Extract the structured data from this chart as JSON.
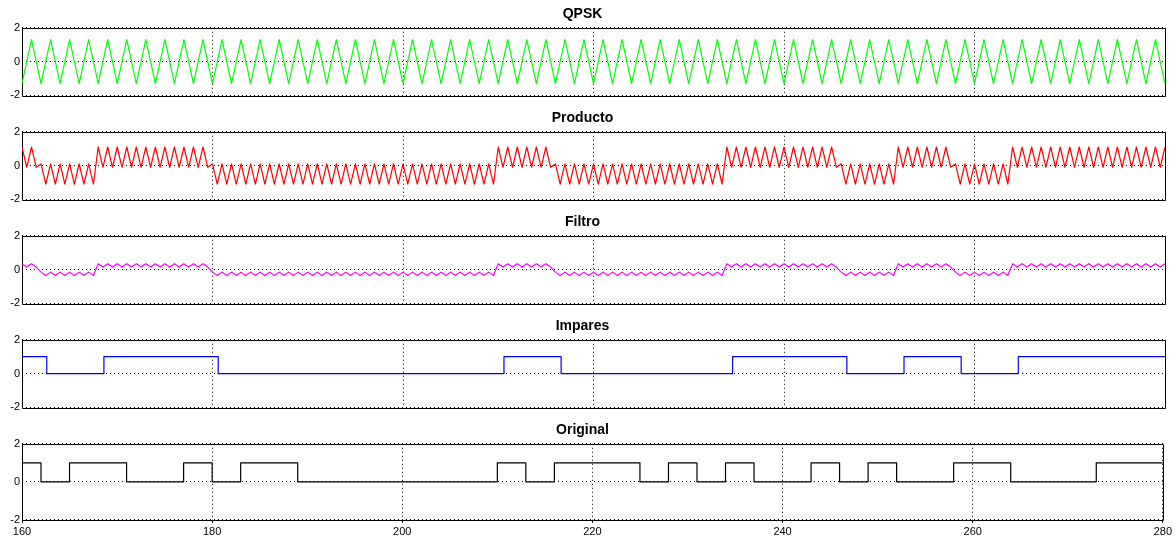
{
  "chart_data": [
    {
      "type": "line",
      "title": "QPSK",
      "xlim": [
        160,
        280
      ],
      "xticks": [
        160,
        180,
        200,
        220,
        240,
        260,
        280
      ],
      "ylim": [
        -2,
        2
      ],
      "yticks": [
        -2,
        0,
        2
      ],
      "grid": true,
      "tick_labels": "y",
      "series": [
        {
          "color": "#00ff00",
          "x": [
            160,
            160.5,
            161,
            161.5,
            162,
            162.5,
            163,
            163.5,
            164,
            164.5,
            165,
            165.5,
            166,
            166.5,
            167,
            167.5,
            168,
            168.5,
            169,
            169.5,
            170,
            170.5,
            171,
            171.5,
            172,
            172.5,
            173,
            173.5,
            174,
            174.5,
            175,
            175.5,
            176,
            176.5,
            177,
            177.5,
            178,
            178.5,
            179,
            179.5,
            180,
            180.5,
            181,
            181.5,
            182,
            182.5,
            183,
            183.5,
            184,
            184.5,
            185,
            185.5,
            186,
            186.5,
            187,
            187.5,
            188,
            188.5,
            189,
            189.5,
            190,
            190.5,
            191,
            191.5,
            192,
            192.5,
            193,
            193.5,
            194,
            194.5,
            195,
            195.5,
            196,
            196.5,
            197,
            197.5,
            198,
            198.5,
            199,
            199.5,
            200,
            200.5,
            201,
            201.5,
            202,
            202.5,
            203,
            203.5,
            204,
            204.5,
            205,
            205.5,
            206,
            206.5,
            207,
            207.5,
            208,
            208.5,
            209,
            209.5,
            210,
            210.5,
            211,
            211.5,
            212,
            212.5,
            213,
            213.5,
            214,
            214.5,
            215,
            215.5,
            216,
            216.5,
            217,
            217.5,
            218,
            218.5,
            219,
            219.5,
            220,
            220.5,
            221,
            221.5,
            222,
            222.5,
            223,
            223.5,
            224,
            224.5,
            225,
            225.5,
            226,
            226.5,
            227,
            227.5,
            228,
            228.5,
            229,
            229.5,
            230,
            230.5,
            231,
            231.5,
            232,
            232.5,
            233,
            233.5,
            234,
            234.5,
            235,
            235.5,
            236,
            236.5,
            237,
            237.5,
            238,
            238.5,
            239,
            239.5,
            240,
            240.5,
            241,
            241.5,
            242,
            242.5,
            243,
            243.5,
            244,
            244.5,
            245,
            245.5,
            246,
            246.5,
            247,
            247.5,
            248,
            248.5,
            249,
            249.5,
            250,
            250.5,
            251,
            251.5,
            252,
            252.5,
            253,
            253.5,
            254,
            254.5,
            255,
            255.5,
            256,
            256.5,
            257,
            257.5,
            258,
            258.5,
            259,
            259.5,
            260,
            260.5,
            261,
            261.5,
            262,
            262.5,
            263,
            263.5,
            264,
            264.5,
            265,
            265.5,
            266,
            266.5,
            267,
            267.5,
            268,
            268.5,
            269,
            269.5,
            270,
            270.5,
            271,
            271.5,
            272,
            272.5,
            273,
            273.5,
            274,
            274.5,
            275,
            275.5,
            276,
            276.5,
            277,
            277.5,
            278,
            278.5,
            279,
            279.5,
            280
          ],
          "values": [
            -1.3,
            0,
            1.3,
            0,
            -1.3,
            0,
            1.3,
            0,
            -1.3,
            0,
            1.3,
            0,
            -1.3,
            0,
            1.3,
            0,
            -1.3,
            0,
            1.3,
            0,
            -1.3,
            0,
            1.3,
            0,
            -1.3,
            0,
            1.3,
            0,
            -1.3,
            0,
            1.3,
            0,
            -1.3,
            0,
            1.3,
            0,
            -1.3,
            0,
            1.3,
            0,
            -1.3,
            0,
            1.3,
            0,
            -1.3,
            0,
            1.3,
            0,
            -1.3,
            0,
            1.3,
            0,
            -1.3,
            0,
            1.3,
            0,
            -1.3,
            0,
            1.3,
            0,
            -1.3,
            0,
            1.3,
            0,
            -1.3,
            0,
            1.3,
            0,
            -1.3,
            0,
            1.3,
            0,
            -1.3,
            0,
            1.3,
            0,
            -1.3,
            0,
            1.3,
            0,
            -1.3,
            0,
            1.3,
            0,
            -1.3,
            0,
            1.3,
            0,
            -1.3,
            0,
            1.3,
            0,
            -1.3,
            0,
            1.3,
            0,
            -1.3,
            0,
            1.3,
            0,
            -1.3,
            0,
            1.3,
            0,
            -1.3,
            0,
            1.3,
            0,
            -1.3,
            0,
            1.3,
            0,
            -1.3,
            0,
            1.3,
            0,
            -1.3,
            0,
            1.3,
            0,
            -1.3,
            0,
            1.3,
            0,
            -1.3,
            0,
            1.3,
            0,
            -1.3,
            0,
            1.3,
            0,
            -1.3,
            0,
            1.3,
            0,
            -1.3,
            0,
            1.3,
            0,
            -1.3,
            0,
            1.3,
            0,
            -1.3,
            0,
            1.3,
            0,
            -1.3,
            0,
            1.3,
            0,
            -1.3,
            0,
            1.3,
            0,
            -1.3,
            0,
            1.3,
            0,
            -1.3,
            0,
            1.3,
            0,
            -1.3,
            0,
            1.3,
            0,
            -1.3,
            0,
            1.3,
            0,
            -1.3,
            0,
            1.3,
            0,
            -1.3,
            0,
            1.3,
            0,
            -1.3,
            0,
            1.3,
            0,
            -1.3,
            0,
            1.3,
            0,
            -1.3,
            0,
            1.3,
            0,
            -1.3,
            0,
            1.3,
            0,
            -1.3,
            0,
            1.3,
            0,
            -1.3,
            0,
            1.3,
            0,
            -1.3,
            0,
            1.3,
            0,
            -1.3,
            0,
            1.3,
            0,
            -1.3,
            0,
            1.3,
            0,
            -1.3,
            0,
            1.3,
            0,
            -1.3,
            0,
            1.3,
            0,
            -1.3,
            0,
            1.3,
            0,
            -1.3,
            0,
            1.3,
            0,
            -1.3,
            0,
            1.3,
            0,
            -1.3,
            0,
            1.3,
            0,
            -1.3
          ]
        }
      ]
    },
    {
      "type": "line",
      "title": "Producto",
      "xlim": [
        160,
        280
      ],
      "xticks": [
        160,
        180,
        200,
        220,
        240,
        260,
        280
      ],
      "ylim": [
        -2,
        2
      ],
      "yticks": [
        -2,
        0,
        2
      ],
      "grid": true,
      "tick_labels": "y",
      "series": [
        {
          "color": "#ff0000",
          "x": [
            160,
            160.5,
            161,
            161.5,
            162,
            162.5,
            163,
            163.5,
            164,
            164.5,
            165,
            165.5,
            166,
            166.5,
            167,
            167.5,
            168,
            168.5,
            169,
            169.5,
            170,
            170.5,
            171,
            171.5,
            172,
            172.5,
            173,
            173.5,
            174,
            174.5,
            175,
            175.5,
            176,
            176.5,
            177,
            177.5,
            178,
            178.5,
            179,
            179.5,
            180,
            180.5,
            181,
            181.5,
            182,
            182.5,
            183,
            183.5,
            184,
            184.5,
            185,
            185.5,
            186,
            186.5,
            187,
            187.5,
            188,
            188.5,
            189,
            189.5,
            190,
            190.5,
            191,
            191.5,
            192,
            192.5,
            193,
            193.5,
            194,
            194.5,
            195,
            195.5,
            196,
            196.5,
            197,
            197.5,
            198,
            198.5,
            199,
            199.5,
            200,
            200.5,
            201,
            201.5,
            202,
            202.5,
            203,
            203.5,
            204,
            204.5,
            205,
            205.5,
            206,
            206.5,
            207,
            207.5,
            208,
            208.5,
            209,
            209.5,
            210,
            210.5,
            211,
            211.5,
            212,
            212.5,
            213,
            213.5,
            214,
            214.5,
            215,
            215.5,
            216,
            216.5,
            217,
            217.5,
            218,
            218.5,
            219,
            219.5,
            220,
            220.5,
            221,
            221.5,
            222,
            222.5,
            223,
            223.5,
            224,
            224.5,
            225,
            225.5,
            226,
            226.5,
            227,
            227.5,
            228,
            228.5,
            229,
            229.5,
            230,
            230.5,
            231,
            231.5,
            232,
            232.5,
            233,
            233.5,
            234,
            234.5,
            235,
            235.5,
            236,
            236.5,
            237,
            237.5,
            238,
            238.5,
            239,
            239.5,
            240,
            240.5,
            241,
            241.5,
            242,
            242.5,
            243,
            243.5,
            244,
            244.5,
            245,
            245.5,
            246,
            246.5,
            247,
            247.5,
            248,
            248.5,
            249,
            249.5,
            250,
            250.5,
            251,
            251.5,
            252,
            252.5,
            253,
            253.5,
            254,
            254.5,
            255,
            255.5,
            256,
            256.5,
            257,
            257.5,
            258,
            258.5,
            259,
            259.5,
            260,
            260.5,
            261,
            261.5,
            262,
            262.5,
            263,
            263.5,
            264,
            264.5,
            265,
            265.5,
            266,
            266.5,
            267,
            267.5,
            268,
            268.5,
            269,
            269.5,
            270,
            270.5,
            271,
            271.5,
            272,
            272.5,
            273,
            273.5,
            274,
            274.5,
            275,
            275.5,
            276,
            276.5,
            277,
            277.5,
            278,
            278.5,
            279,
            279.5,
            280
          ],
          "values": [
            1.1,
            -0.1,
            1.1,
            -0.1,
            0.1,
            -1.1,
            0.1,
            -1.1,
            0.1,
            -1.1,
            0.1,
            -1.1,
            0.1,
            -1.1,
            0.1,
            -1.1,
            1.1,
            -0.1,
            1.1,
            -0.1,
            1.1,
            -0.1,
            1.1,
            -0.1,
            1.1,
            -0.1,
            1.1,
            -0.1,
            1.1,
            -0.1,
            1.1,
            -0.1,
            1.1,
            -0.1,
            1.1,
            -0.1,
            1.1,
            -0.1,
            1.1,
            -0.1,
            0.1,
            -1.1,
            0.1,
            -1.1,
            0.1,
            -1.1,
            0.1,
            -1.1,
            0.1,
            -1.1,
            0.1,
            -1.1,
            0.1,
            -1.1,
            0.1,
            -1.1,
            0.1,
            -1.1,
            0.1,
            -1.1,
            0.1,
            -1.1,
            0.1,
            -1.1,
            0.1,
            -1.1,
            0.1,
            -1.1,
            0.1,
            -1.1,
            0.1,
            -1.1,
            0.1,
            -1.1,
            0.1,
            -1.1,
            0.1,
            -1.1,
            0.1,
            -1.1,
            0.1,
            -1.1,
            0.1,
            -1.1,
            0.1,
            -1.1,
            0.1,
            -1.1,
            0.1,
            -1.1,
            0.1,
            -1.1,
            0.1,
            -1.1,
            0.1,
            -1.1,
            0.1,
            -1.1,
            0.1,
            -1.1,
            1.1,
            -0.1,
            1.1,
            -0.1,
            1.1,
            -0.1,
            1.1,
            -0.1,
            1.1,
            -0.1,
            1.1,
            -0.1,
            0.1,
            -1.1,
            0.1,
            -1.1,
            0.1,
            -1.1,
            0.1,
            -1.1,
            0.1,
            -1.1,
            0.1,
            -1.1,
            0.1,
            -1.1,
            0.1,
            -1.1,
            0.1,
            -1.1,
            0.1,
            -1.1,
            0.1,
            -1.1,
            0.1,
            -1.1,
            0.1,
            -1.1,
            0.1,
            -1.1,
            0.1,
            -1.1,
            0.1,
            -1.1,
            0.1,
            -1.1,
            0.1,
            -1.1,
            1.1,
            -0.1,
            1.1,
            -0.1,
            1.1,
            -0.1,
            1.1,
            -0.1,
            1.1,
            -0.1,
            1.1,
            -0.1,
            1.1,
            -0.1,
            1.1,
            -0.1,
            1.1,
            -0.1,
            1.1,
            -0.1,
            1.1,
            -0.1,
            1.1,
            -0.1,
            0.1,
            -1.1,
            0.1,
            -1.1,
            0.1,
            -1.1,
            0.1,
            -1.1,
            0.1,
            -1.1,
            0.1,
            -1.1,
            1.1,
            -0.1,
            1.1,
            -0.1,
            1.1,
            -0.1,
            1.1,
            -0.1,
            1.1,
            -0.1,
            1.1,
            -0.1,
            0.1,
            -1.1,
            0.1,
            -1.1,
            0.1,
            -1.1,
            0.1,
            -1.1,
            0.1,
            -1.1,
            0.1,
            -1.1,
            1.1,
            -0.1,
            1.1,
            -0.1,
            1.1,
            -0.1,
            1.1,
            -0.1,
            1.1,
            -0.1,
            1.1,
            -0.1,
            1.1,
            -0.1,
            1.1,
            -0.1,
            1.1,
            -0.1,
            1.1,
            -0.1,
            1.1,
            -0.1,
            1.1,
            -0.1,
            1.1,
            -0.1,
            1.1,
            -0.1,
            1.1,
            -0.1,
            1.1,
            -0.1,
            1.1
          ]
        }
      ]
    },
    {
      "type": "line",
      "title": "Filtro",
      "xlim": [
        160,
        280
      ],
      "xticks": [
        160,
        180,
        200,
        220,
        240,
        260,
        280
      ],
      "ylim": [
        -2,
        2
      ],
      "yticks": [
        -2,
        0,
        2
      ],
      "grid": true,
      "tick_labels": "y",
      "series": [
        {
          "color": "#ff00ff",
          "x": [
            160,
            160.5,
            161,
            161.5,
            162,
            162.5,
            163,
            163.5,
            164,
            164.5,
            165,
            165.5,
            166,
            166.5,
            167,
            167.5,
            168,
            168.5,
            169,
            169.5,
            170,
            170.5,
            171,
            171.5,
            172,
            172.5,
            173,
            173.5,
            174,
            174.5,
            175,
            175.5,
            176,
            176.5,
            177,
            177.5,
            178,
            178.5,
            179,
            179.5,
            180,
            180.5,
            181,
            181.5,
            182,
            182.5,
            183,
            183.5,
            184,
            184.5,
            185,
            185.5,
            186,
            186.5,
            187,
            187.5,
            188,
            188.5,
            189,
            189.5,
            190,
            190.5,
            191,
            191.5,
            192,
            192.5,
            193,
            193.5,
            194,
            194.5,
            195,
            195.5,
            196,
            196.5,
            197,
            197.5,
            198,
            198.5,
            199,
            199.5,
            200,
            200.5,
            201,
            201.5,
            202,
            202.5,
            203,
            203.5,
            204,
            204.5,
            205,
            205.5,
            206,
            206.5,
            207,
            207.5,
            208,
            208.5,
            209,
            209.5,
            210,
            210.5,
            211,
            211.5,
            212,
            212.5,
            213,
            213.5,
            214,
            214.5,
            215,
            215.5,
            216,
            216.5,
            217,
            217.5,
            218,
            218.5,
            219,
            219.5,
            220,
            220.5,
            221,
            221.5,
            222,
            222.5,
            223,
            223.5,
            224,
            224.5,
            225,
            225.5,
            226,
            226.5,
            227,
            227.5,
            228,
            228.5,
            229,
            229.5,
            230,
            230.5,
            231,
            231.5,
            232,
            232.5,
            233,
            233.5,
            234,
            234.5,
            235,
            235.5,
            236,
            236.5,
            237,
            237.5,
            238,
            238.5,
            239,
            239.5,
            240,
            240.5,
            241,
            241.5,
            242,
            242.5,
            243,
            243.5,
            244,
            244.5,
            245,
            245.5,
            246,
            246.5,
            247,
            247.5,
            248,
            248.5,
            249,
            249.5,
            250,
            250.5,
            251,
            251.5,
            252,
            252.5,
            253,
            253.5,
            254,
            254.5,
            255,
            255.5,
            256,
            256.5,
            257,
            257.5,
            258,
            258.5,
            259,
            259.5,
            260,
            260.5,
            261,
            261.5,
            262,
            262.5,
            263,
            263.5,
            264,
            264.5,
            265,
            265.5,
            266,
            266.5,
            267,
            267.5,
            268,
            268.5,
            269,
            269.5,
            270,
            270.5,
            271,
            271.5,
            272,
            272.5,
            273,
            273.5,
            274,
            274.5,
            275,
            275.5,
            276,
            276.5,
            277,
            277.5,
            278,
            278.5,
            279,
            279.5,
            280
          ],
          "values": [
            0.35,
            0.15,
            0.35,
            0.15,
            -0.15,
            -0.35,
            -0.15,
            -0.35,
            -0.15,
            -0.35,
            -0.15,
            -0.35,
            -0.15,
            -0.35,
            -0.15,
            -0.35,
            0.35,
            0.15,
            0.35,
            0.15,
            0.35,
            0.15,
            0.35,
            0.15,
            0.35,
            0.15,
            0.35,
            0.15,
            0.35,
            0.15,
            0.35,
            0.15,
            0.35,
            0.15,
            0.35,
            0.15,
            0.35,
            0.15,
            0.35,
            0.15,
            -0.15,
            -0.35,
            -0.15,
            -0.35,
            -0.15,
            -0.35,
            -0.15,
            -0.35,
            -0.15,
            -0.35,
            -0.15,
            -0.35,
            -0.15,
            -0.35,
            -0.15,
            -0.35,
            -0.15,
            -0.35,
            -0.15,
            -0.35,
            -0.15,
            -0.35,
            -0.15,
            -0.35,
            -0.15,
            -0.35,
            -0.15,
            -0.35,
            -0.15,
            -0.35,
            -0.15,
            -0.35,
            -0.15,
            -0.35,
            -0.15,
            -0.35,
            -0.15,
            -0.35,
            -0.15,
            -0.35,
            -0.15,
            -0.35,
            -0.15,
            -0.35,
            -0.15,
            -0.35,
            -0.15,
            -0.35,
            -0.15,
            -0.35,
            -0.15,
            -0.35,
            -0.15,
            -0.35,
            -0.15,
            -0.35,
            -0.15,
            -0.35,
            -0.15,
            -0.35,
            0.35,
            0.15,
            0.35,
            0.15,
            0.35,
            0.15,
            0.35,
            0.15,
            0.35,
            0.15,
            0.35,
            0.15,
            -0.15,
            -0.35,
            -0.15,
            -0.35,
            -0.15,
            -0.35,
            -0.15,
            -0.35,
            -0.15,
            -0.35,
            -0.15,
            -0.35,
            -0.15,
            -0.35,
            -0.15,
            -0.35,
            -0.15,
            -0.35,
            -0.15,
            -0.35,
            -0.15,
            -0.35,
            -0.15,
            -0.35,
            -0.15,
            -0.35,
            -0.15,
            -0.35,
            -0.15,
            -0.35,
            -0.15,
            -0.35,
            -0.15,
            -0.35,
            -0.15,
            -0.35,
            0.35,
            0.15,
            0.35,
            0.15,
            0.35,
            0.15,
            0.35,
            0.15,
            0.35,
            0.15,
            0.35,
            0.15,
            0.35,
            0.15,
            0.35,
            0.15,
            0.35,
            0.15,
            0.35,
            0.15,
            0.35,
            0.15,
            0.35,
            0.15,
            -0.15,
            -0.35,
            -0.15,
            -0.35,
            -0.15,
            -0.35,
            -0.15,
            -0.35,
            -0.15,
            -0.35,
            -0.15,
            -0.35,
            0.35,
            0.15,
            0.35,
            0.15,
            0.35,
            0.15,
            0.35,
            0.15,
            0.35,
            0.15,
            0.35,
            0.15,
            -0.15,
            -0.35,
            -0.15,
            -0.35,
            -0.15,
            -0.35,
            -0.15,
            -0.35,
            -0.15,
            -0.35,
            -0.15,
            -0.35,
            0.35,
            0.15,
            0.35,
            0.15,
            0.35,
            0.15,
            0.35,
            0.15,
            0.35,
            0.15,
            0.35,
            0.15,
            0.35,
            0.15,
            0.35,
            0.15,
            0.35,
            0.15,
            0.35,
            0.15,
            0.35,
            0.15,
            0.35,
            0.15,
            0.35,
            0.15,
            0.35,
            0.15,
            0.35,
            0.15,
            0.35,
            0.15,
            0.35
          ]
        }
      ]
    },
    {
      "type": "step",
      "title": "Impares",
      "xlim": [
        160,
        280
      ],
      "xticks": [
        160,
        180,
        200,
        220,
        240,
        260,
        280
      ],
      "ylim": [
        -2,
        2
      ],
      "yticks": [
        -2,
        0,
        2
      ],
      "grid": true,
      "tick_labels": "y",
      "series": [
        {
          "color": "#0000ff",
          "x": [
            160,
            162.6,
            168.6,
            180.6,
            210.6,
            216.6,
            234.6,
            246.6,
            252.6,
            258.6,
            264.6,
            280
          ],
          "values": [
            1,
            0,
            1,
            0,
            1,
            0,
            1,
            0,
            1,
            0,
            1,
            1
          ]
        }
      ]
    },
    {
      "type": "step",
      "title": "Original",
      "xlim": [
        160,
        280
      ],
      "xticks": [
        160,
        180,
        200,
        220,
        240,
        260,
        280
      ],
      "ylim": [
        -2,
        2
      ],
      "yticks": [
        -2,
        0,
        2
      ],
      "grid": true,
      "series": [
        {
          "color": "#000000",
          "x": [
            160,
            162,
            165,
            171,
            177,
            180,
            183,
            189,
            210,
            213,
            216,
            225,
            228,
            231,
            234,
            237,
            243,
            246,
            249,
            252,
            258,
            264,
            273,
            280
          ],
          "values": [
            1,
            0,
            1,
            0,
            1,
            0,
            1,
            0,
            1,
            0,
            1,
            0,
            1,
            0,
            1,
            0,
            1,
            0,
            1,
            0,
            1,
            0,
            1,
            1
          ]
        }
      ]
    }
  ]
}
